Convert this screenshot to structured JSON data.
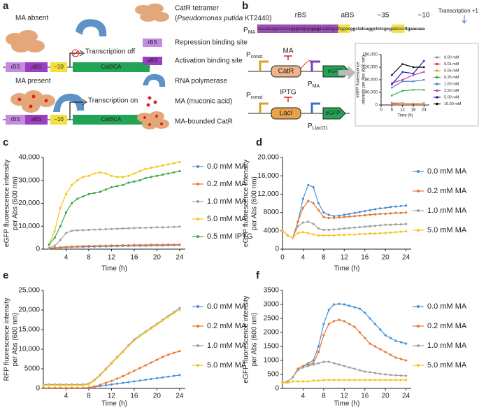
{
  "panel_a": {
    "label": "a",
    "absent": {
      "title": "MA absent",
      "status": "Transcription off"
    },
    "present": {
      "title": "MA present",
      "status": "Transcription on"
    },
    "construct": {
      "rbs": "rBS",
      "abs": "aBS",
      "m10": "−10",
      "gene": "CatBCA"
    },
    "legend": {
      "catr": "CatR tetramer",
      "note": [
        "(",
        "Pseudomonas putida",
        " KT2440)"
      ],
      "rbs": "Repression binding site",
      "abs": "Activation binding site",
      "rnap": "RNA polymerase",
      "ma": "MA (muconic acid)",
      "bound": "MA-bounded CatR"
    }
  },
  "panel_b": {
    "label": "b",
    "promoter": {
      "main": "P",
      "sub": "MA"
    },
    "sites": {
      "rbs": "rBS",
      "abs": "aBS",
      "m35": "−35",
      "m10": "−10",
      "tss": "Transcription +1"
    },
    "sequence": [
      "tcccatcagcccctcagggtatgtgc",
      "gaga",
      "tcattcgat",
      "ttggac",
      "ggctatcaggctctcgcg",
      "aatccc",
      "ttgaacaa",
      "a"
    ],
    "circuit1": {
      "pconst": {
        "main": "P",
        "sub": "const"
      },
      "regulator": "CatR",
      "inducer": "MA",
      "promoter": {
        "main": "P",
        "sub": "MA"
      },
      "reporter": "eGFP"
    },
    "circuit2": {
      "pconst": {
        "main": "P",
        "sub": "const"
      },
      "regulator": "LacI",
      "inducer": "IPTG",
      "promoter": {
        "main": "P",
        "sub": "LlacO1"
      },
      "reporter": "eGFP"
    }
  },
  "chart_data": [
    {
      "type": "line",
      "xlabel": "Time (h)",
      "ylabel": [
        "eGFP fluorescence",
        "intensity per Abs (600 nm)"
      ],
      "x": [
        6,
        12,
        18,
        24
      ],
      "xlim": [
        0,
        27
      ],
      "xticks": [
        0,
        6,
        12,
        18,
        24
      ],
      "ylim": [
        0,
        160000
      ],
      "yticks": [
        0,
        {
          "value": 40000,
          "label": "40,000"
        },
        {
          "value": 80000,
          "label": "80,000"
        },
        {
          "value": 120000,
          "label": "120,000"
        },
        {
          "value": 160000,
          "label": "160,000"
        }
      ],
      "series": [
        {
          "name": "0.00 mM",
          "color": "#999999",
          "values": [
            4000,
            5000,
            4000,
            5000
          ]
        },
        {
          "name": "0.01 mM",
          "color": "#e03030",
          "values": [
            6000,
            6000,
            4000,
            6000
          ]
        },
        {
          "name": "0.05 mM",
          "color": "#f0a030",
          "values": [
            3000,
            5000,
            5000,
            5000
          ]
        },
        {
          "name": "0.25 mM",
          "color": "#33aa55",
          "values": [
            30000,
            45000,
            48000,
            48000
          ]
        },
        {
          "name": "1.00 mM",
          "color": "#4a7fc0",
          "values": [
            55000,
            75000,
            75000,
            80000
          ]
        },
        {
          "name": "2.50 mM",
          "color": "#c040c0",
          "values": [
            70000,
            80000,
            95000,
            105000
          ]
        },
        {
          "name": "5.00 mM",
          "color": "#2020a0",
          "values": [
            65000,
            105000,
            100000,
            140000
          ]
        },
        {
          "name": "10.00 mM",
          "color": "#000000",
          "values": [
            95000,
            130000,
            120000,
            120000
          ]
        }
      ]
    },
    {
      "type": "line",
      "label": "c",
      "xlabel": "Time (h)",
      "ylabel": [
        "eGFP fluorescence intensity",
        "per Abs (600 nm)"
      ],
      "x": [
        1,
        2,
        3,
        4,
        5,
        6,
        7,
        8,
        9,
        10,
        11,
        12,
        13,
        14,
        15,
        16,
        17,
        18,
        19,
        20,
        21,
        22,
        23,
        24
      ],
      "xlim": [
        0,
        25
      ],
      "xticks": [
        4,
        8,
        12,
        16,
        20,
        24
      ],
      "ylim": [
        0,
        40000
      ],
      "yticks": [
        0,
        {
          "value": 10000,
          "label": "10,000"
        },
        {
          "value": 20000,
          "label": "20,000"
        },
        {
          "value": 30000,
          "label": "30,000"
        },
        {
          "value": 40000,
          "label": "40,000"
        }
      ],
      "series": [
        {
          "name": "0.0 mM MA",
          "color": "#4a90d9",
          "values": [
            300,
            500,
            700,
            800,
            900,
            1000,
            1000,
            1100,
            1100,
            1200,
            1200,
            1300,
            1300,
            1400,
            1400,
            1500,
            1500,
            1500,
            1600,
            1600,
            1600,
            1700,
            1700,
            1800
          ]
        },
        {
          "name": "0.2 mM MA",
          "color": "#e8762c",
          "values": [
            400,
            600,
            800,
            1000,
            1100,
            1200,
            1300,
            1400,
            1400,
            1500,
            1500,
            1600,
            1600,
            1700,
            1700,
            1800,
            1800,
            1800,
            1900,
            1900,
            1900,
            2000,
            2000,
            2000
          ]
        },
        {
          "name": "1.0 mM MA",
          "color": "#a0a0a0",
          "values": [
            600,
            1500,
            4000,
            7000,
            8000,
            8200,
            8300,
            8400,
            8500,
            8600,
            8700,
            8800,
            8900,
            9000,
            9100,
            9200,
            9300,
            9300,
            9400,
            9500,
            9500,
            9600,
            9700,
            9800
          ]
        },
        {
          "name": "5.0 mM MA",
          "color": "#f5c518",
          "values": [
            2000,
            8000,
            18000,
            24000,
            28000,
            30000,
            31500,
            32000,
            33000,
            33500,
            33000,
            32000,
            31500,
            31500,
            32000,
            33000,
            34000,
            35000,
            35500,
            36000,
            36500,
            37000,
            37500,
            38000
          ]
        },
        {
          "name": "0.5 mM IPTG",
          "color": "#3aaa48",
          "values": [
            2000,
            5000,
            10000,
            16000,
            20000,
            22000,
            23000,
            24000,
            24500,
            25000,
            26000,
            27000,
            27500,
            28000,
            29000,
            29500,
            30000,
            31000,
            31500,
            32000,
            32500,
            33000,
            33500,
            34000
          ]
        }
      ]
    },
    {
      "type": "line",
      "label": "d",
      "xlabel": "Time (h)",
      "ylabel": [
        "eGFP fluorescence intensity",
        "per Abs (600 nm)"
      ],
      "x": [
        0,
        1,
        2,
        3,
        4,
        5,
        6,
        7,
        8,
        9,
        10,
        11,
        12,
        13,
        14,
        15,
        16,
        17,
        18,
        19,
        20,
        21,
        22,
        23,
        24
      ],
      "xlim": [
        0,
        25
      ],
      "xticks": [
        0,
        4,
        8,
        12,
        16,
        20,
        24
      ],
      "ylim": [
        0,
        20000
      ],
      "yticks": [
        0,
        4000,
        8000,
        {
          "value": 12000,
          "label": "12,000"
        },
        {
          "value": 16000,
          "label": "16,000"
        },
        {
          "value": 20000,
          "label": "20,000"
        }
      ],
      "series": [
        {
          "name": "0.0 mM MA",
          "color": "#4a90d9",
          "values": [
            4000,
            3000,
            2500,
            6000,
            11000,
            14000,
            13500,
            10000,
            8000,
            7500,
            7200,
            7300,
            7500,
            7700,
            7900,
            8100,
            8300,
            8500,
            8700,
            8900,
            9000,
            9200,
            9300,
            9400,
            9500
          ]
        },
        {
          "name": "0.2 mM MA",
          "color": "#e8762c",
          "values": [
            4000,
            3000,
            2500,
            6000,
            9000,
            10500,
            10000,
            8500,
            7000,
            6800,
            6800,
            6900,
            7000,
            7100,
            7200,
            7300,
            7400,
            7500,
            7600,
            7700,
            7700,
            7800,
            7900,
            7900,
            8000
          ]
        },
        {
          "name": "1.0 mM MA",
          "color": "#a0a0a0",
          "values": [
            4000,
            3000,
            2500,
            5000,
            5800,
            6000,
            5500,
            4500,
            4200,
            4200,
            4300,
            4400,
            4500,
            4600,
            4700,
            4800,
            4900,
            5000,
            5100,
            5200,
            5300,
            5300,
            5400,
            5400,
            5500
          ]
        },
        {
          "name": "5.0 mM MA",
          "color": "#f5c518",
          "values": [
            4000,
            3000,
            2500,
            3500,
            3700,
            3500,
            3200,
            3000,
            3000,
            3000,
            3000,
            3100,
            3100,
            3200,
            3200,
            3300,
            3300,
            3400,
            3400,
            3500,
            3500,
            3600,
            3700,
            3800,
            3900
          ]
        }
      ]
    },
    {
      "type": "line",
      "label": "e",
      "xlabel": "Time (h)",
      "ylabel": [
        "RFP fluorescence intensity",
        "per Abs (600 nm)"
      ],
      "x": [
        0,
        1,
        2,
        3,
        4,
        5,
        6,
        7,
        8,
        9,
        10,
        11,
        12,
        13,
        14,
        15,
        16,
        17,
        18,
        19,
        20,
        21,
        22,
        23,
        24
      ],
      "xlim": [
        0,
        25
      ],
      "xticks": [
        4,
        8,
        12,
        16,
        20,
        24
      ],
      "ylim": [
        0,
        25000
      ],
      "yticks": [
        0,
        5000,
        {
          "value": 10000,
          "label": "10,000"
        },
        {
          "value": 15000,
          "label": "15,000"
        },
        {
          "value": 20000,
          "label": "20,000"
        },
        {
          "value": 25000,
          "label": "25,000"
        }
      ],
      "series": [
        {
          "name": "0.0 mM MA",
          "color": "#4a90d9",
          "values": [
            100,
            100,
            100,
            100,
            100,
            100,
            100,
            100,
            200,
            400,
            600,
            800,
            1000,
            1200,
            1400,
            1600,
            1800,
            2000,
            2200,
            2400,
            2600,
            2800,
            3000,
            3200,
            3400
          ]
        },
        {
          "name": "0.2 mM MA",
          "color": "#e8762c",
          "values": [
            100,
            100,
            100,
            100,
            100,
            100,
            100,
            100,
            200,
            500,
            900,
            1400,
            1900,
            2500,
            3100,
            3800,
            4500,
            5200,
            5900,
            6600,
            7300,
            8000,
            8600,
            9100,
            9500
          ]
        },
        {
          "name": "1.0 mM MA",
          "color": "#a0a0a0",
          "values": [
            1000,
            1000,
            1000,
            1000,
            1000,
            1000,
            1000,
            1000,
            1200,
            2200,
            3500,
            5000,
            6500,
            8000,
            9500,
            11000,
            12500,
            13500,
            14500,
            15500,
            16500,
            17500,
            18500,
            19500,
            20500
          ]
        },
        {
          "name": "5.0 mM MA",
          "color": "#f5c518",
          "values": [
            800,
            800,
            800,
            800,
            800,
            800,
            800,
            800,
            1000,
            2000,
            3300,
            4800,
            6300,
            7800,
            9300,
            10800,
            12200,
            13300,
            14300,
            15300,
            16300,
            17300,
            18300,
            19200,
            20000
          ]
        }
      ]
    },
    {
      "type": "line",
      "label": "f",
      "xlabel": "Time (h)",
      "ylabel": [
        "eGFP fluorescence intensity",
        "per Abs (600 nm)"
      ],
      "x": [
        0,
        1,
        2,
        3,
        4,
        5,
        6,
        7,
        8,
        9,
        10,
        11,
        12,
        13,
        14,
        15,
        16,
        17,
        18,
        19,
        20,
        21,
        22,
        23,
        24
      ],
      "xlim": [
        0,
        25
      ],
      "xticks": [
        4,
        8,
        12,
        16,
        20,
        24
      ],
      "ylim": [
        0,
        3500
      ],
      "yticks": [
        0,
        500,
        1000,
        1500,
        2000,
        2500,
        3000,
        3500
      ],
      "series": [
        {
          "name": "0.0 mM MA",
          "color": "#4a90d9",
          "values": [
            200,
            250,
            400,
            700,
            800,
            900,
            1000,
            1500,
            2300,
            2800,
            3000,
            3020,
            3000,
            2950,
            2900,
            2850,
            2700,
            2500,
            2300,
            2100,
            1900,
            1800,
            1700,
            1650,
            1600
          ]
        },
        {
          "name": "0.2 mM MA",
          "color": "#e8762c",
          "values": [
            200,
            250,
            400,
            700,
            800,
            850,
            900,
            1300,
            1900,
            2300,
            2400,
            2450,
            2400,
            2300,
            2200,
            2000,
            1800,
            1600,
            1500,
            1400,
            1300,
            1200,
            1100,
            1050,
            1000
          ]
        },
        {
          "name": "1.0 mM MA",
          "color": "#a0a0a0",
          "values": [
            200,
            250,
            400,
            650,
            750,
            800,
            850,
            900,
            950,
            950,
            900,
            850,
            800,
            750,
            700,
            650,
            600,
            580,
            550,
            520,
            500,
            480,
            470,
            460,
            450
          ]
        },
        {
          "name": "5.0 mM MA",
          "color": "#f5c518",
          "values": [
            200,
            200,
            250,
            250,
            250,
            250,
            280,
            280,
            300,
            300,
            300,
            300,
            300,
            300,
            300,
            300,
            300,
            300,
            300,
            300,
            300,
            300,
            300,
            300,
            300
          ]
        }
      ]
    }
  ]
}
